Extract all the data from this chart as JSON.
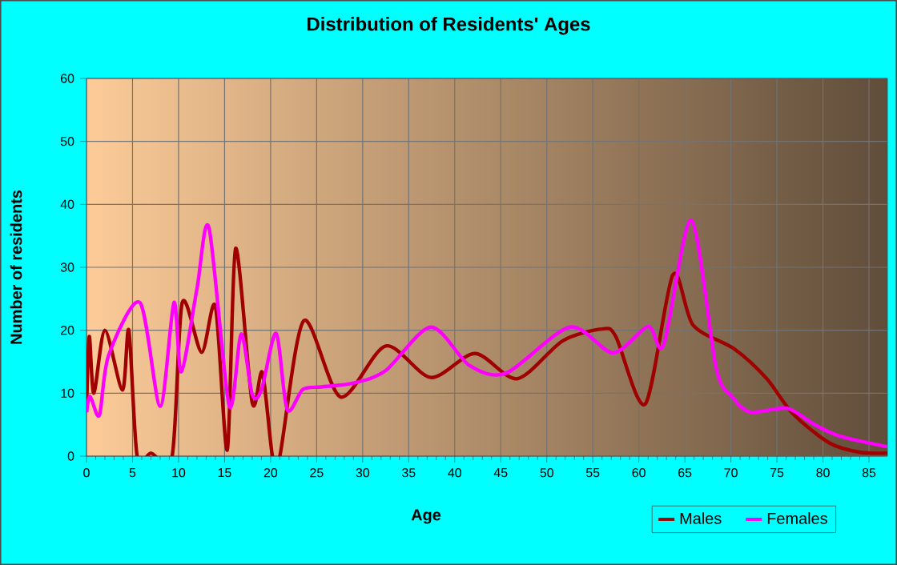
{
  "chart_data": {
    "type": "line",
    "title": "Distribution of Residents' Ages",
    "xlabel": "Age",
    "ylabel": "Number of residents",
    "xlim": [
      0,
      87
    ],
    "xticks": [
      0,
      5,
      10,
      15,
      20,
      25,
      30,
      35,
      40,
      45,
      50,
      55,
      60,
      65,
      70,
      75,
      80,
      85
    ],
    "ylim": [
      0,
      60
    ],
    "yticks": [
      0,
      10,
      20,
      30,
      40,
      50,
      60
    ],
    "grid": true,
    "legend": "bottom right",
    "marker": "none",
    "line_style": "solid",
    "series": [
      {
        "name": "Males",
        "color": "#a00000",
        "x": [
          0,
          0.3,
          0.8,
          2,
          3.9,
          4.6,
          5.5,
          7,
          9.3,
          10.4,
          12.5,
          14,
          15.3,
          16.2,
          18,
          19.1,
          20.2,
          21,
          23.6,
          27.6,
          32.5,
          37.4,
          42.2,
          46.8,
          51.7,
          56,
          57.5,
          60.7,
          63.7,
          65.9,
          70.4,
          73.9,
          76.7,
          80.7,
          84.1,
          87
        ],
        "values": [
          7,
          19,
          10,
          20,
          10.5,
          20,
          0,
          0.5,
          0,
          24.4,
          16.5,
          23.8,
          1,
          33,
          8.5,
          13.3,
          0,
          0,
          21.5,
          9.4,
          17.5,
          12.5,
          16.3,
          12.3,
          18.3,
          20.2,
          19,
          8.3,
          28.8,
          20.8,
          17,
          12.3,
          6.8,
          2.1,
          0.6,
          0.5
        ]
      },
      {
        "name": "Females",
        "color": "#ff00ff",
        "x": [
          0,
          0.4,
          1.4,
          2.4,
          5.8,
          8,
          9.5,
          10.3,
          12,
          13.3,
          15.5,
          16.8,
          18,
          19,
          20.6,
          21.8,
          23.5,
          25.5,
          29,
          32.5,
          37.4,
          41.6,
          45.6,
          52.5,
          57.2,
          61,
          62.7,
          65.7,
          68.4,
          70.1,
          72.1,
          76.1,
          79,
          81.8,
          87
        ],
        "values": [
          7,
          9.5,
          6.5,
          16,
          24.4,
          7.9,
          24.4,
          13.4,
          26.6,
          36.3,
          8,
          19.4,
          9.8,
          10.5,
          19.5,
          7.4,
          10.6,
          11,
          11.6,
          13.6,
          20.5,
          14.4,
          13.2,
          20.5,
          16.4,
          20.6,
          17.7,
          37.5,
          14,
          9.5,
          7,
          7.6,
          5.1,
          3.2,
          1.5
        ]
      }
    ]
  }
}
